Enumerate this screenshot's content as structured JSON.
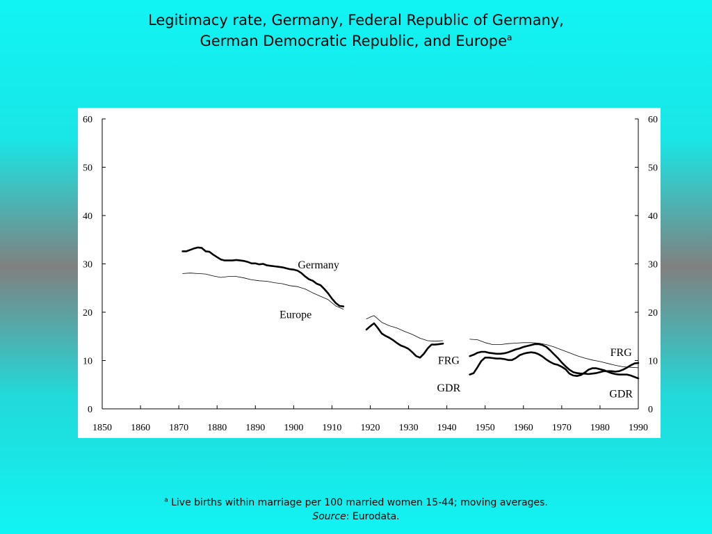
{
  "title": {
    "line1": "Legitimacy rate, Germany, Federal Republic of Germany,",
    "line2": "German Democratic Republic, and Europe",
    "marker": "a"
  },
  "footnote": {
    "marker": "a",
    "text": "Live births within marriage per 100 married women 15-44; moving averages.",
    "source_label": "Source",
    "source_text": ": Eurodata."
  },
  "chart_data": {
    "type": "line",
    "title": "",
    "xlabel": "",
    "ylabel": "",
    "xlim": [
      1850,
      1990
    ],
    "ylim": [
      0,
      60
    ],
    "x_ticks": [
      1850,
      1860,
      1870,
      1880,
      1890,
      1900,
      1910,
      1920,
      1930,
      1940,
      1950,
      1960,
      1970,
      1980,
      1990
    ],
    "y_ticks": [
      0,
      10,
      20,
      30,
      40,
      50,
      60
    ],
    "y_axis_right": true,
    "grid": false,
    "annotations": [
      {
        "text": "Germany",
        "x": 1906.5,
        "y": 29.1
      },
      {
        "text": "Europe",
        "x": 1900.5,
        "y": 18.8
      },
      {
        "text": "FRG",
        "x": 1940.5,
        "y": 9.3
      },
      {
        "text": "GDR",
        "x": 1940.5,
        "y": 3.6
      },
      {
        "text": "FRG",
        "x": 1985.5,
        "y": 10.9
      },
      {
        "text": "GDR",
        "x": 1985.5,
        "y": 2.4
      }
    ],
    "series": [
      {
        "name": "Germany",
        "color": "#000000",
        "weight": "thick",
        "segments": [
          [
            [
              1871,
              32.6
            ],
            [
              1872,
              32.6
            ],
            [
              1873,
              32.9
            ],
            [
              1874,
              33.2
            ],
            [
              1875,
              33.4
            ],
            [
              1876,
              33.3
            ],
            [
              1877,
              32.6
            ],
            [
              1878,
              32.5
            ],
            [
              1879,
              31.9
            ],
            [
              1880,
              31.4
            ],
            [
              1881,
              30.9
            ],
            [
              1882,
              30.7
            ],
            [
              1883,
              30.7
            ],
            [
              1884,
              30.7
            ],
            [
              1885,
              30.8
            ],
            [
              1886,
              30.7
            ],
            [
              1887,
              30.6
            ],
            [
              1888,
              30.4
            ],
            [
              1889,
              30.1
            ],
            [
              1890,
              30.1
            ],
            [
              1891,
              29.9
            ],
            [
              1892,
              30.0
            ],
            [
              1893,
              29.7
            ],
            [
              1894,
              29.6
            ],
            [
              1895,
              29.5
            ],
            [
              1896,
              29.4
            ],
            [
              1897,
              29.3
            ],
            [
              1898,
              29.1
            ],
            [
              1899,
              28.9
            ],
            [
              1900,
              28.8
            ],
            [
              1901,
              28.6
            ],
            [
              1902,
              28.1
            ],
            [
              1903,
              27.4
            ],
            [
              1904,
              26.8
            ],
            [
              1905,
              26.5
            ],
            [
              1906,
              25.9
            ],
            [
              1907,
              25.6
            ],
            [
              1908,
              24.8
            ],
            [
              1909,
              23.9
            ],
            [
              1910,
              22.8
            ],
            [
              1911,
              21.9
            ],
            [
              1912,
              21.3
            ],
            [
              1913,
              21.2
            ]
          ],
          [
            [
              1919,
              16.4
            ],
            [
              1920,
              17.1
            ],
            [
              1921,
              17.7
            ],
            [
              1922,
              16.7
            ],
            [
              1923,
              15.6
            ],
            [
              1924,
              15.1
            ],
            [
              1925,
              14.7
            ],
            [
              1926,
              14.2
            ],
            [
              1927,
              13.6
            ],
            [
              1928,
              13.1
            ],
            [
              1929,
              12.8
            ],
            [
              1930,
              12.4
            ],
            [
              1931,
              11.7
            ],
            [
              1932,
              10.9
            ],
            [
              1933,
              10.6
            ],
            [
              1934,
              11.4
            ],
            [
              1935,
              12.5
            ],
            [
              1936,
              13.3
            ],
            [
              1937,
              13.3
            ],
            [
              1938,
              13.4
            ],
            [
              1939,
              13.5
            ]
          ]
        ]
      },
      {
        "name": "Europe",
        "color": "#000000",
        "weight": "thin",
        "segments": [
          [
            [
              1871,
              28.0
            ],
            [
              1873,
              28.1
            ],
            [
              1875,
              28.0
            ],
            [
              1877,
              27.9
            ],
            [
              1879,
              27.5
            ],
            [
              1881,
              27.2
            ],
            [
              1883,
              27.4
            ],
            [
              1885,
              27.4
            ],
            [
              1887,
              27.1
            ],
            [
              1889,
              26.7
            ],
            [
              1891,
              26.5
            ],
            [
              1893,
              26.4
            ],
            [
              1895,
              26.1
            ],
            [
              1897,
              25.9
            ],
            [
              1899,
              25.5
            ],
            [
              1901,
              25.3
            ],
            [
              1903,
              24.8
            ],
            [
              1905,
              24.0
            ],
            [
              1907,
              23.3
            ],
            [
              1909,
              22.6
            ],
            [
              1911,
              21.3
            ],
            [
              1913,
              20.6
            ]
          ],
          [
            [
              1919,
              18.6
            ],
            [
              1920,
              19.0
            ],
            [
              1921,
              19.3
            ],
            [
              1922,
              18.6
            ],
            [
              1923,
              17.9
            ],
            [
              1925,
              17.2
            ],
            [
              1927,
              16.7
            ],
            [
              1929,
              16.0
            ],
            [
              1931,
              15.4
            ],
            [
              1933,
              14.6
            ],
            [
              1935,
              14.1
            ],
            [
              1937,
              14.0
            ],
            [
              1939,
              14.1
            ]
          ],
          [
            [
              1946,
              14.4
            ],
            [
              1948,
              14.3
            ],
            [
              1950,
              13.7
            ],
            [
              1952,
              13.3
            ],
            [
              1954,
              13.3
            ],
            [
              1956,
              13.5
            ],
            [
              1958,
              13.6
            ],
            [
              1960,
              13.7
            ],
            [
              1962,
              13.7
            ],
            [
              1964,
              13.6
            ],
            [
              1966,
              13.3
            ],
            [
              1968,
              12.8
            ],
            [
              1970,
              12.2
            ],
            [
              1972,
              11.6
            ],
            [
              1974,
              11.0
            ],
            [
              1976,
              10.5
            ],
            [
              1978,
              10.1
            ],
            [
              1980,
              9.8
            ],
            [
              1982,
              9.4
            ],
            [
              1984,
              9.0
            ],
            [
              1986,
              8.7
            ],
            [
              1988,
              8.6
            ],
            [
              1990,
              8.5
            ]
          ]
        ]
      },
      {
        "name": "FRG",
        "color": "#000000",
        "weight": "thick",
        "segments": [
          [
            [
              1946,
              10.9
            ],
            [
              1947,
              11.2
            ],
            [
              1948,
              11.6
            ],
            [
              1949,
              11.8
            ],
            [
              1950,
              11.8
            ],
            [
              1951,
              11.6
            ],
            [
              1952,
              11.5
            ],
            [
              1953,
              11.4
            ],
            [
              1954,
              11.4
            ],
            [
              1955,
              11.5
            ],
            [
              1956,
              11.7
            ],
            [
              1957,
              12.0
            ],
            [
              1958,
              12.3
            ],
            [
              1959,
              12.5
            ],
            [
              1960,
              12.8
            ],
            [
              1961,
              13.0
            ],
            [
              1962,
              13.2
            ],
            [
              1963,
              13.4
            ],
            [
              1964,
              13.4
            ],
            [
              1965,
              13.2
            ],
            [
              1966,
              12.8
            ],
            [
              1967,
              12.1
            ],
            [
              1968,
              11.3
            ],
            [
              1969,
              10.5
            ],
            [
              1970,
              9.6
            ],
            [
              1971,
              8.8
            ],
            [
              1972,
              8.1
            ],
            [
              1973,
              7.6
            ],
            [
              1974,
              7.4
            ],
            [
              1975,
              7.3
            ],
            [
              1976,
              7.3
            ],
            [
              1977,
              7.2
            ],
            [
              1978,
              7.3
            ],
            [
              1979,
              7.4
            ],
            [
              1980,
              7.6
            ],
            [
              1981,
              7.8
            ],
            [
              1982,
              7.8
            ],
            [
              1983,
              7.8
            ],
            [
              1984,
              7.7
            ],
            [
              1985,
              7.8
            ],
            [
              1986,
              8.1
            ],
            [
              1987,
              8.5
            ],
            [
              1988,
              9.0
            ],
            [
              1989,
              9.4
            ],
            [
              1990,
              9.5
            ]
          ]
        ]
      },
      {
        "name": "GDR",
        "color": "#000000",
        "weight": "thick",
        "segments": [
          [
            [
              1946,
              7.1
            ],
            [
              1947,
              7.4
            ],
            [
              1948,
              8.6
            ],
            [
              1949,
              9.9
            ],
            [
              1950,
              10.6
            ],
            [
              1951,
              10.6
            ],
            [
              1952,
              10.5
            ],
            [
              1953,
              10.4
            ],
            [
              1954,
              10.4
            ],
            [
              1955,
              10.3
            ],
            [
              1956,
              10.1
            ],
            [
              1957,
              10.1
            ],
            [
              1958,
              10.5
            ],
            [
              1959,
              11.1
            ],
            [
              1960,
              11.4
            ],
            [
              1961,
              11.6
            ],
            [
              1962,
              11.7
            ],
            [
              1963,
              11.6
            ],
            [
              1964,
              11.3
            ],
            [
              1965,
              10.8
            ],
            [
              1966,
              10.2
            ],
            [
              1967,
              9.7
            ],
            [
              1968,
              9.3
            ],
            [
              1969,
              9.1
            ],
            [
              1970,
              8.7
            ],
            [
              1971,
              8.2
            ],
            [
              1972,
              7.3
            ],
            [
              1973,
              6.9
            ],
            [
              1974,
              6.8
            ],
            [
              1975,
              7.0
            ],
            [
              1976,
              7.5
            ],
            [
              1977,
              8.1
            ],
            [
              1978,
              8.4
            ],
            [
              1979,
              8.4
            ],
            [
              1980,
              8.2
            ],
            [
              1981,
              8.0
            ],
            [
              1982,
              7.7
            ],
            [
              1983,
              7.4
            ],
            [
              1984,
              7.2
            ],
            [
              1985,
              7.1
            ],
            [
              1986,
              7.1
            ],
            [
              1987,
              7.1
            ],
            [
              1988,
              6.9
            ],
            [
              1989,
              6.6
            ],
            [
              1990,
              6.3
            ]
          ]
        ]
      }
    ]
  }
}
